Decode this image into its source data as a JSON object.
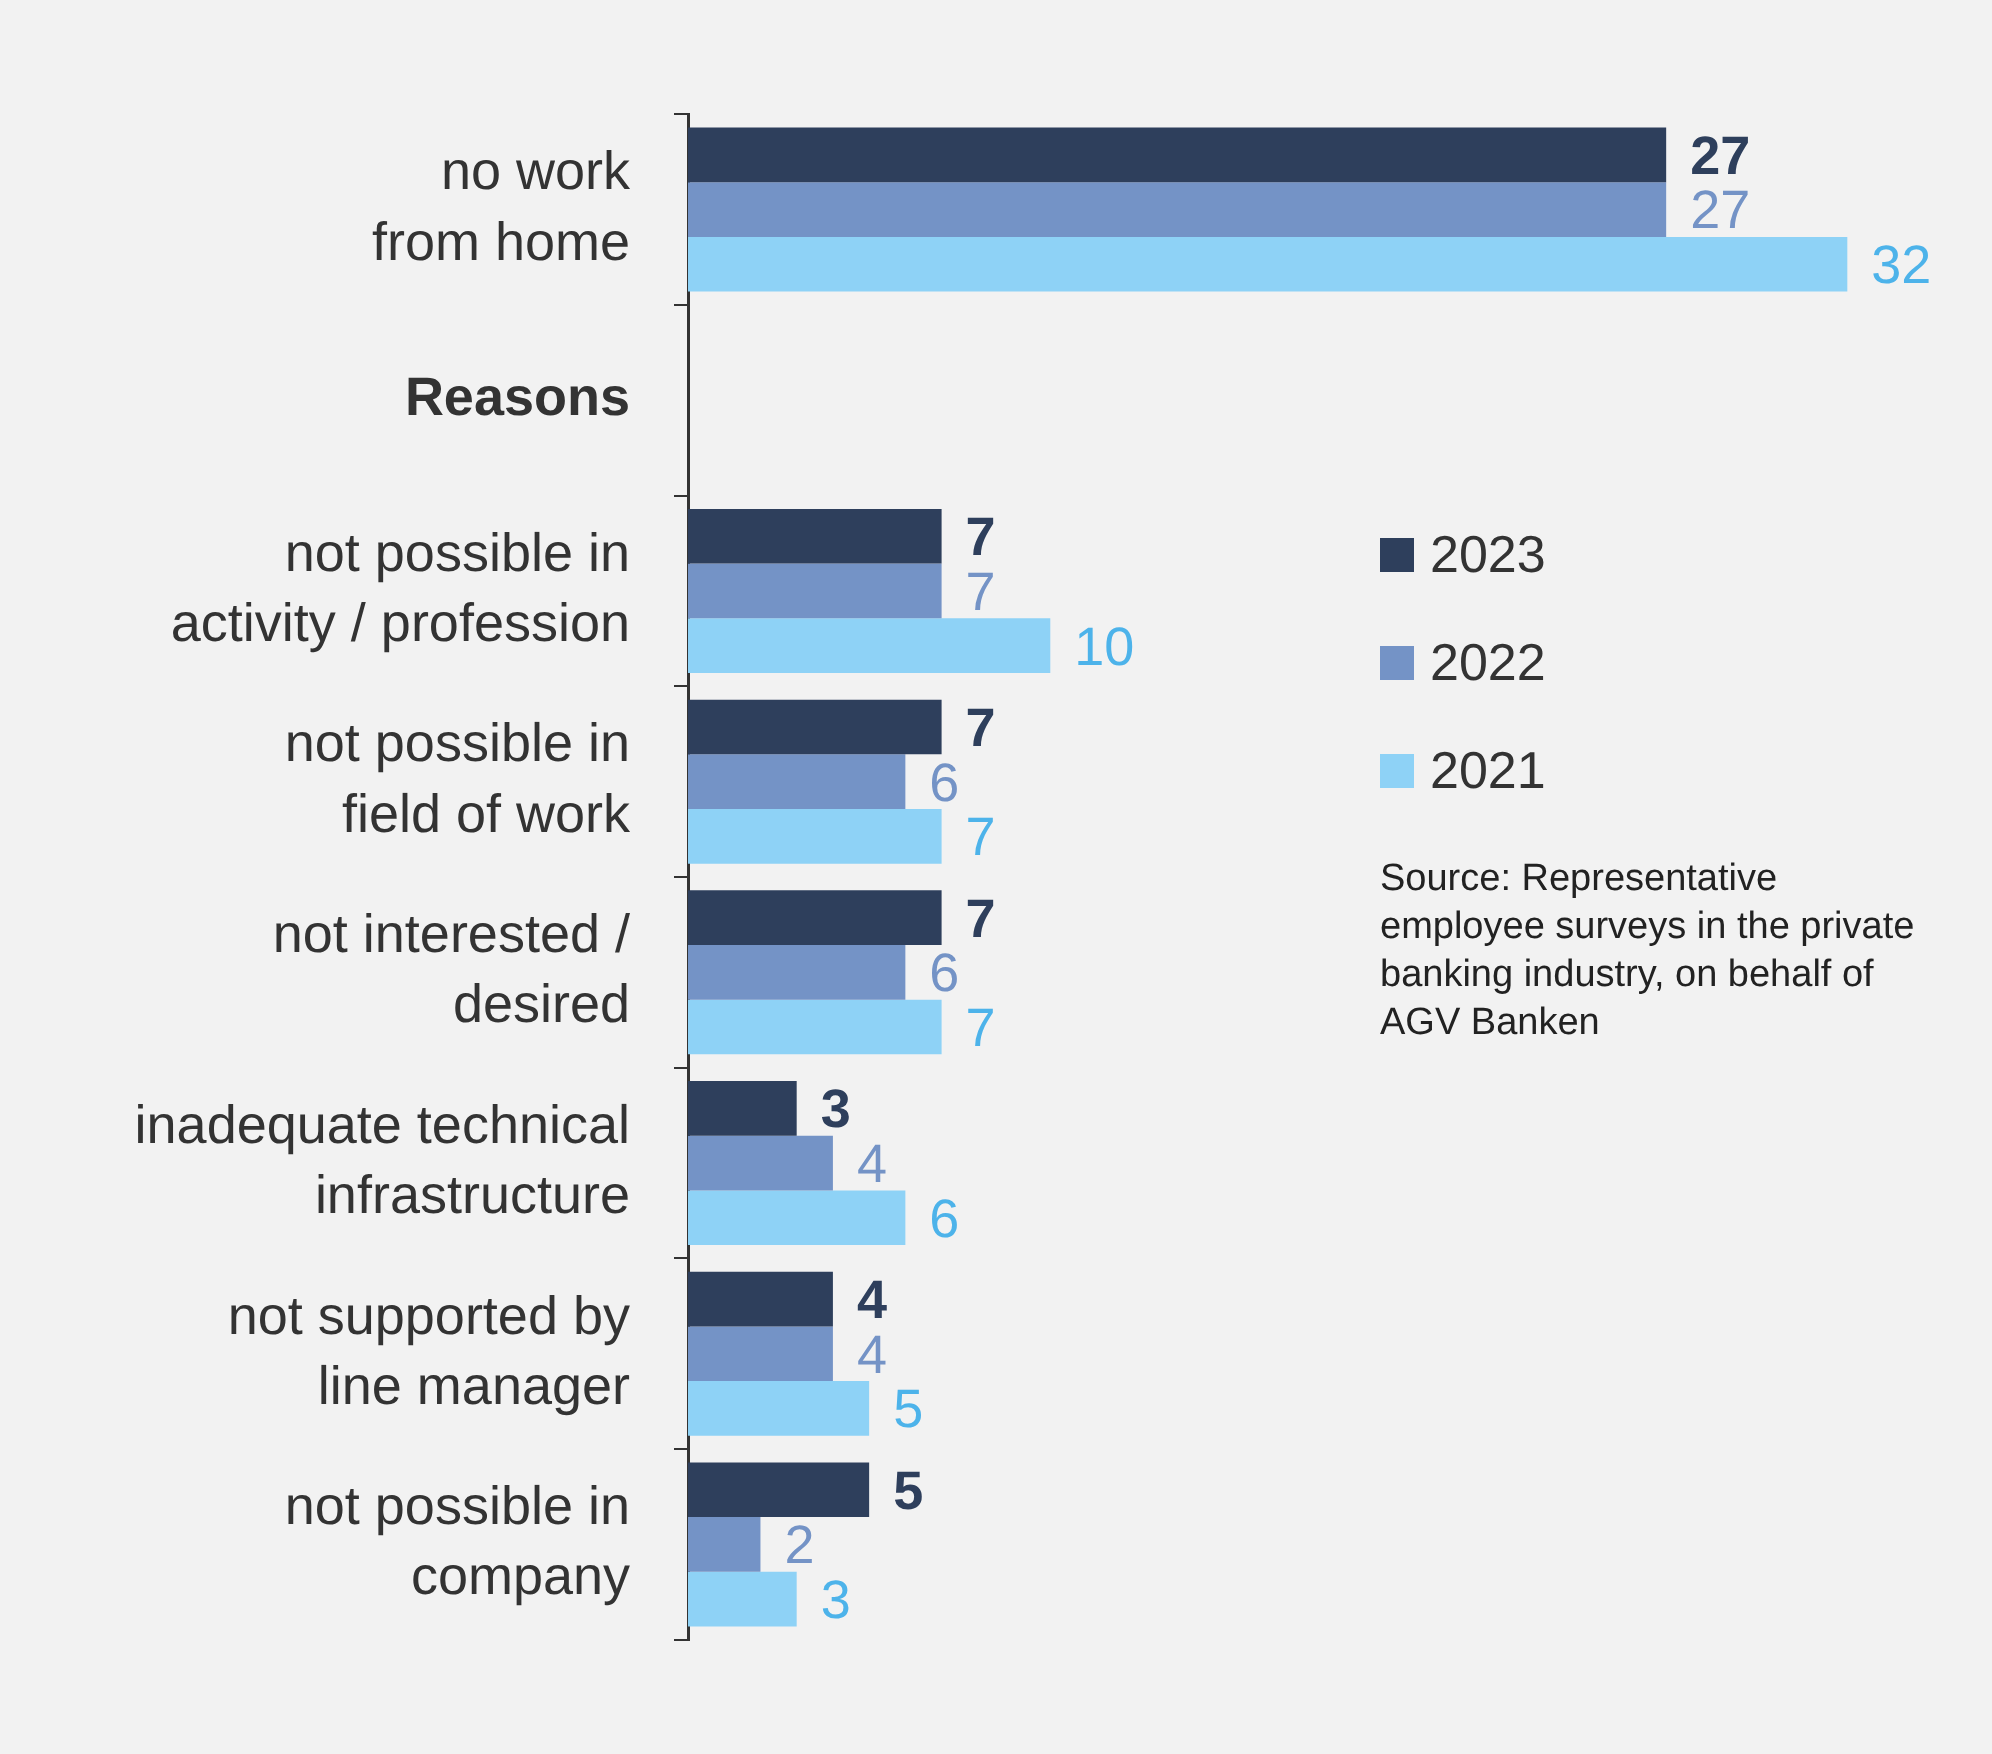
{
  "chart_data": {
    "type": "bar",
    "orientation": "horizontal",
    "categories": [
      "no work\nfrom home",
      "Reasons",
      "not possible in\nactivity / profession",
      "not possible in\nfield of work",
      "not interested /\ndesired",
      "inadequate technical\ninfrastructure",
      "not supported by\nline manager",
      "not possible in\ncompany"
    ],
    "series": [
      {
        "name": "2023",
        "color": "#2e3f5c",
        "values": [
          27,
          null,
          7,
          7,
          7,
          3,
          4,
          5
        ]
      },
      {
        "name": "2022",
        "color": "#7493c6",
        "values": [
          27,
          null,
          7,
          6,
          6,
          4,
          4,
          2
        ]
      },
      {
        "name": "2021",
        "color": "#8ed2f6",
        "values": [
          32,
          null,
          10,
          7,
          7,
          6,
          5,
          3
        ]
      }
    ],
    "data_labels": true,
    "legend": "right",
    "grid": false,
    "annotations": [
      "Source: Representative employee surveys in the private banking industry, on behalf of AGV Banken"
    ]
  }
}
